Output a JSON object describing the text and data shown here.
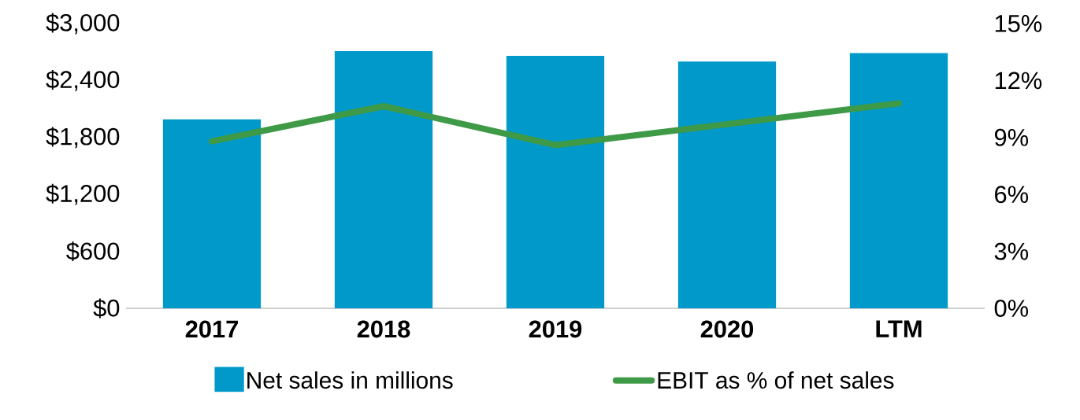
{
  "chart_data": {
    "type": "bar",
    "categories": [
      "2017",
      "2018",
      "2019",
      "2020",
      "LTM"
    ],
    "series": [
      {
        "name": "Net sales in millions",
        "color": "#0099c9",
        "values": [
          1990,
          2710,
          2660,
          2600,
          2690
        ]
      },
      {
        "name": "EBIT as % of net sales",
        "type": "line",
        "axis": "y2",
        "color": "#3f9a47",
        "values": [
          8.8,
          10.65,
          8.6,
          9.7,
          10.8
        ]
      }
    ],
    "ylim": [
      0,
      3000
    ],
    "yticks": [
      {
        "value": 0,
        "label": "$0"
      },
      {
        "value": 600,
        "label": "$600"
      },
      {
        "value": 1200,
        "label": "$1,200"
      },
      {
        "value": 1800,
        "label": "$1,800"
      },
      {
        "value": 2400,
        "label": "$2,400"
      },
      {
        "value": 3000,
        "label": "$3,000"
      }
    ],
    "y2lim": [
      0,
      15
    ],
    "y2ticks": [
      {
        "value": 0,
        "label": "0%"
      },
      {
        "value": 3,
        "label": "3%"
      },
      {
        "value": 6,
        "label": "6%"
      },
      {
        "value": 9,
        "label": "9%"
      },
      {
        "value": 12,
        "label": "12%"
      },
      {
        "value": 15,
        "label": "15%"
      }
    ],
    "legend": "bottom",
    "grid": false,
    "marker": "none",
    "line_style": "solid"
  }
}
